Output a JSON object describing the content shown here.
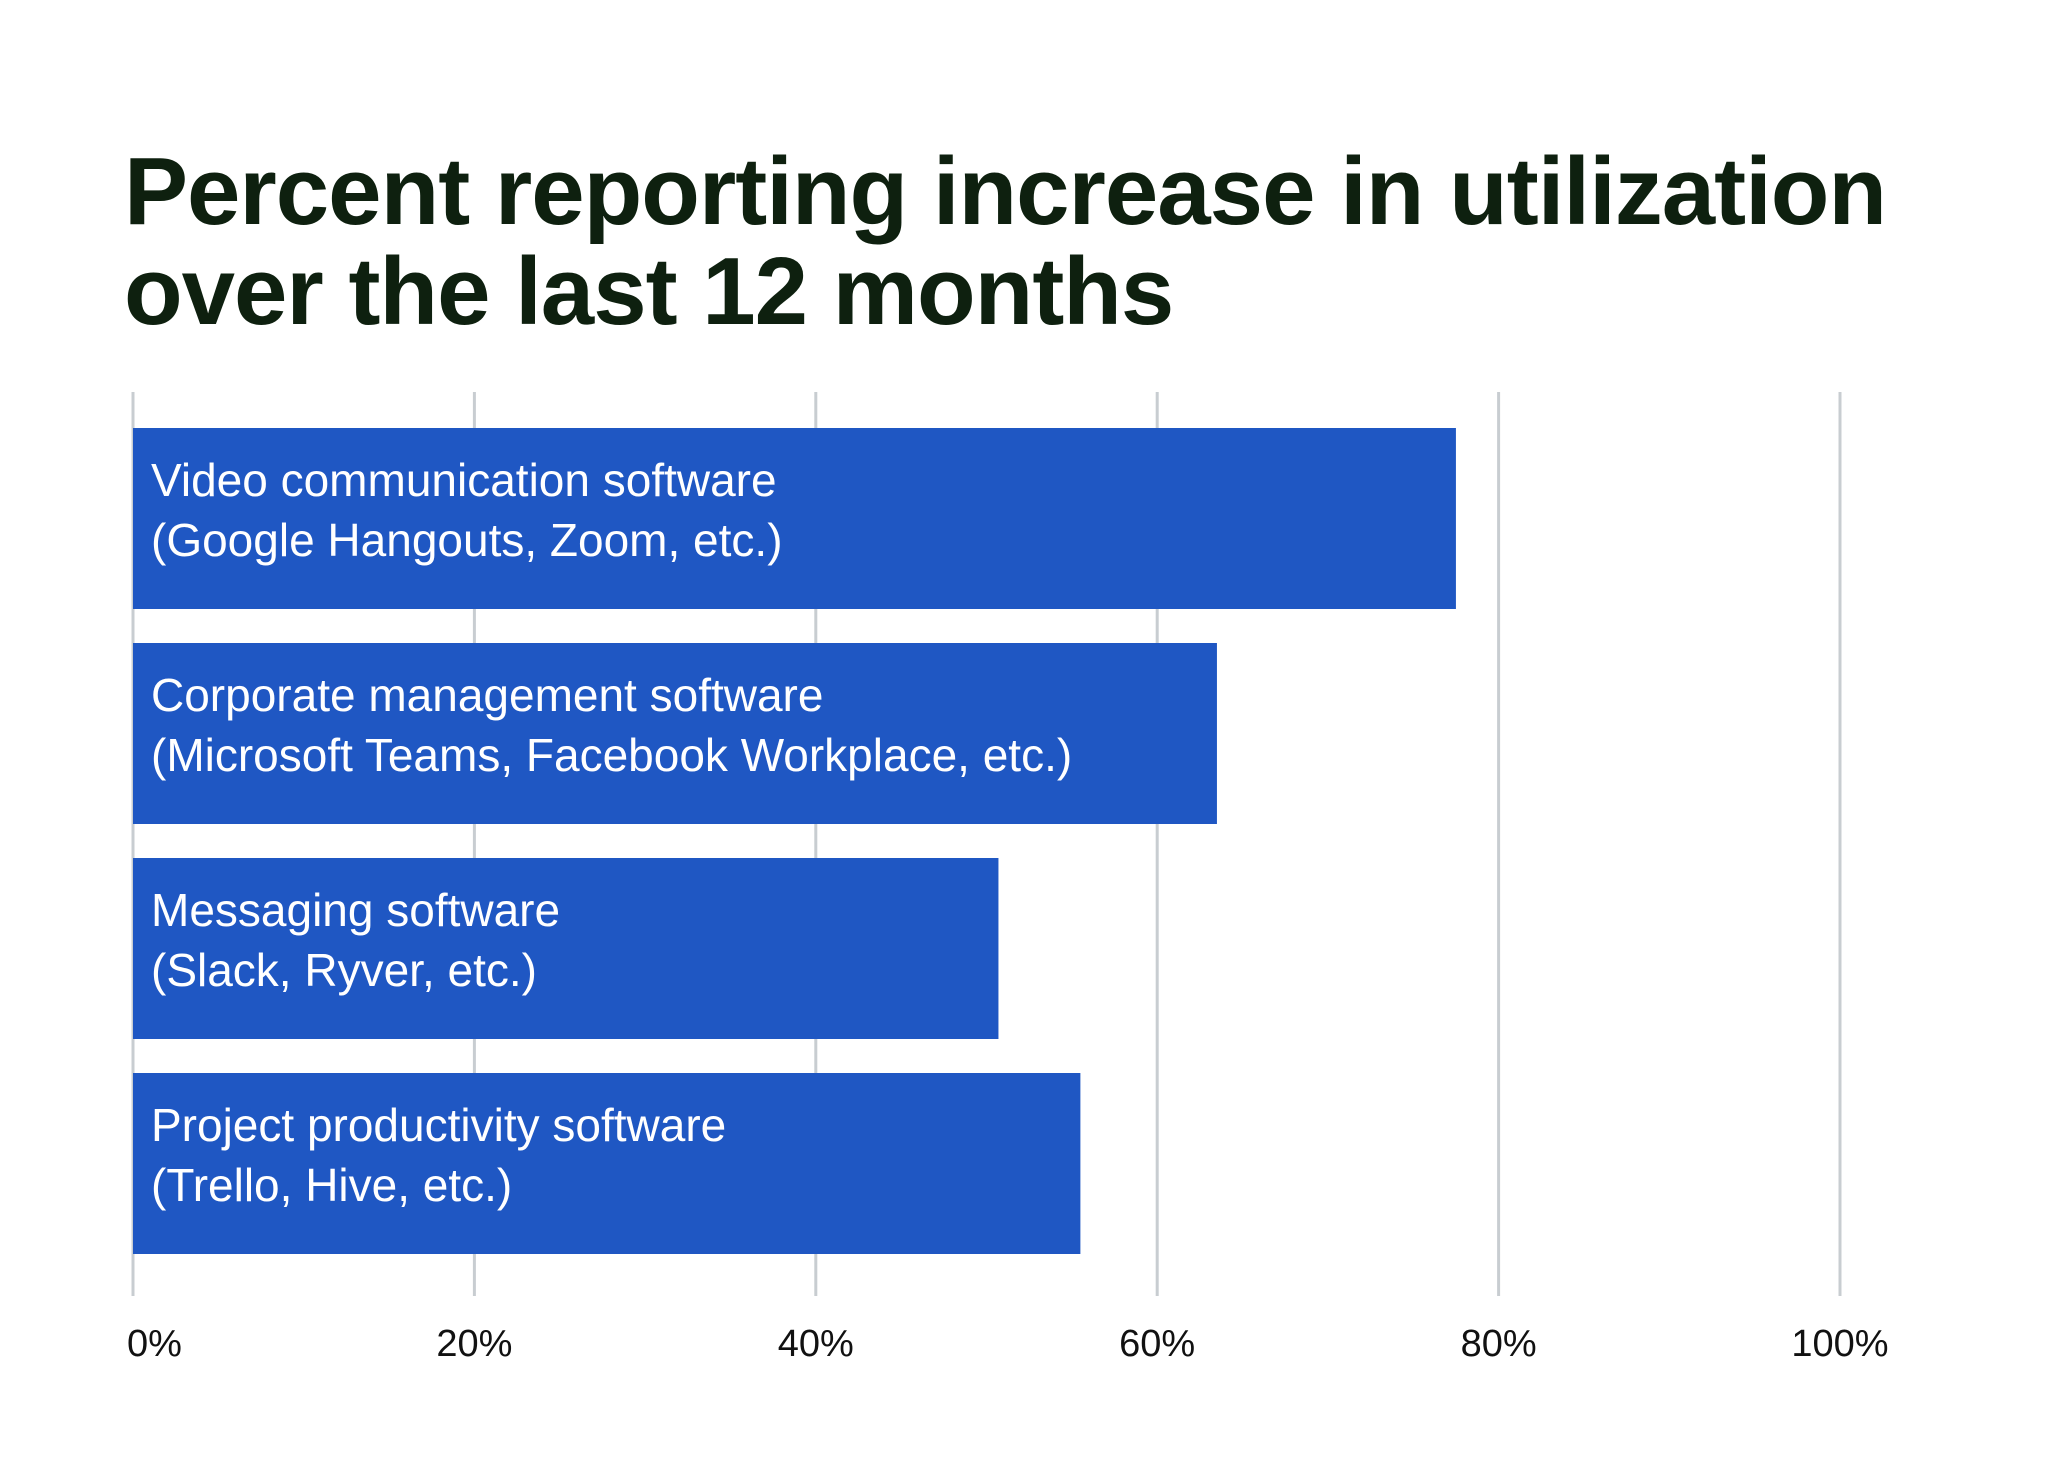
{
  "title": {
    "line1": "Percent reporting increase in utilization",
    "line2": "over the last 12 months"
  },
  "colors": {
    "bar": "#1f57c3",
    "grid": "#c8cdd1",
    "title": "#0e200f",
    "bar_text": "#ffffff",
    "tick_text": "#111111"
  },
  "chart_data": {
    "type": "bar",
    "orientation": "horizontal",
    "title": "Percent reporting increase in utilization over the last 12 months",
    "xlabel": "",
    "ylabel": "",
    "xlim": [
      0,
      100
    ],
    "grid": true,
    "legend": "none",
    "ticks": [
      "0%",
      "20%",
      "40%",
      "60%",
      "80%",
      "100%"
    ],
    "tick_values": [
      0,
      20,
      40,
      60,
      80,
      100
    ],
    "categories": [
      {
        "line1": "Video communication software",
        "line2": "(Google Hangouts, Zoom, etc.)"
      },
      {
        "line1": "Corporate management software",
        "line2": "(Microsoft Teams, Facebook Workplace, etc.)"
      },
      {
        "line1": "Messaging software",
        "line2": "(Slack, Ryver, etc.)"
      },
      {
        "line1": "Project productivity software",
        "line2": "(Trello, Hive, etc.)"
      }
    ],
    "values": [
      77.5,
      63.5,
      50.7,
      55.5
    ]
  }
}
